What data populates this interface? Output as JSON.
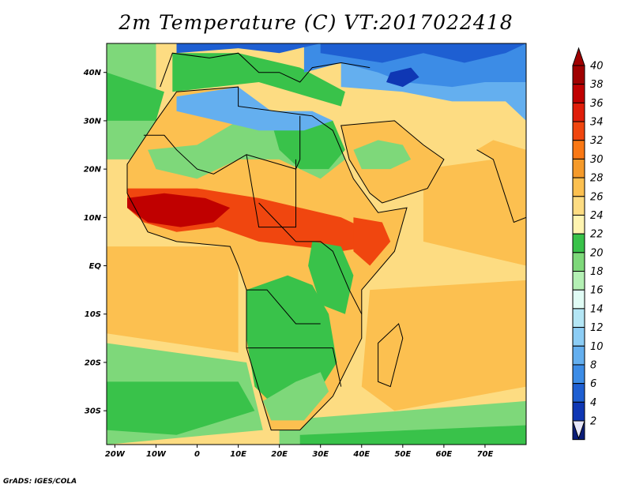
{
  "title": "2m Temperature (C) VT:2017022418",
  "credit": "GrADS: IGES/COLA",
  "map": {
    "lon_range": [
      -22,
      80
    ],
    "lat_range": [
      -37,
      46
    ],
    "lat_ticks": [
      {
        "value": 40,
        "label": "40N"
      },
      {
        "value": 30,
        "label": "30N"
      },
      {
        "value": 20,
        "label": "20N"
      },
      {
        "value": 10,
        "label": "10N"
      },
      {
        "value": 0,
        "label": "EQ"
      },
      {
        "value": -10,
        "label": "10S"
      },
      {
        "value": -20,
        "label": "20S"
      },
      {
        "value": -30,
        "label": "30S"
      }
    ],
    "lon_ticks": [
      {
        "value": -20,
        "label": "20W"
      },
      {
        "value": -10,
        "label": "10W"
      },
      {
        "value": 0,
        "label": "0"
      },
      {
        "value": 10,
        "label": "10E"
      },
      {
        "value": 20,
        "label": "20E"
      },
      {
        "value": 30,
        "label": "30E"
      },
      {
        "value": 40,
        "label": "40E"
      },
      {
        "value": 50,
        "label": "50E"
      },
      {
        "value": 60,
        "label": "60E"
      },
      {
        "value": 70,
        "label": "70E"
      }
    ]
  },
  "colorbar": {
    "levels": [
      {
        "label": "40",
        "color": "#a00000"
      },
      {
        "label": "38",
        "color": "#c00000"
      },
      {
        "label": "36",
        "color": "#e01e0a"
      },
      {
        "label": "34",
        "color": "#f0460f"
      },
      {
        "label": "32",
        "color": "#fa7814"
      },
      {
        "label": "30",
        "color": "#f59a2a"
      },
      {
        "label": "28",
        "color": "#fcc050"
      },
      {
        "label": "26",
        "color": "#fddc82"
      },
      {
        "label": "24",
        "color": "#fff4b0"
      },
      {
        "label": "22",
        "color": "#39c24a"
      },
      {
        "label": "20",
        "color": "#7ed87a"
      },
      {
        "label": "18",
        "color": "#b4f0b4"
      },
      {
        "label": "16",
        "color": "#e0fcf5"
      },
      {
        "label": "14",
        "color": "#b4e6f5"
      },
      {
        "label": "12",
        "color": "#8ccdf5"
      },
      {
        "label": "10",
        "color": "#64afef"
      },
      {
        "label": "8",
        "color": "#3c8ce6"
      },
      {
        "label": "6",
        "color": "#1e5fd2"
      },
      {
        "label": "4",
        "color": "#0f37b4"
      },
      {
        "label": "2",
        "color": "#0a1c78"
      }
    ],
    "top_arrow_color": "#a00000",
    "bottom_arrow_color": "#e6e6f8"
  },
  "palette": {
    "ocean": "#fddc82",
    "ocean_south": "#fcc050",
    "ocean_cool": "#7ed87a",
    "ocean_cold": "#39c24a",
    "land": "#fcc050",
    "hot": "#f0460f",
    "very_hot": "#c00000",
    "mild": "#7ed87a",
    "cool": "#39c24a",
    "cold": "#64afef",
    "colder": "#3c8ce6",
    "coldest": "#1e5fd2",
    "frigid": "#0f37b4",
    "border": "#000000"
  }
}
